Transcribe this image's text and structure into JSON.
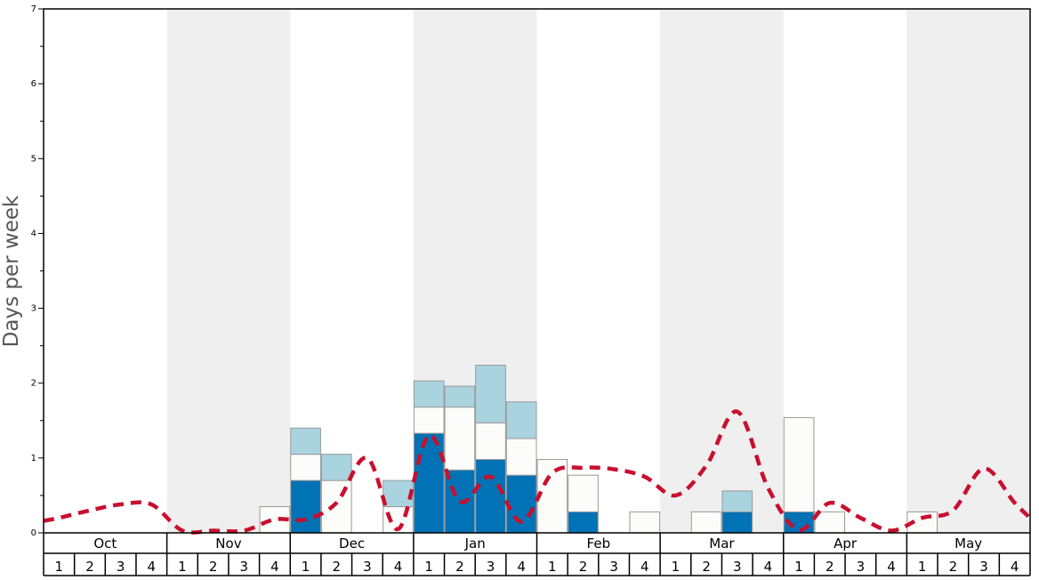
{
  "chart_data": {
    "type": "bar",
    "stacked": true,
    "ylabel": "Days per week",
    "ylim": [
      0,
      7
    ],
    "y_ticks": [
      "0",
      "1",
      "2",
      "3",
      "4",
      "5",
      "6",
      "7"
    ],
    "months": [
      "Oct",
      "Nov",
      "Dec",
      "Jan",
      "Feb",
      "Mar",
      "Apr",
      "May"
    ],
    "weeks": [
      "1",
      "2",
      "3",
      "4"
    ],
    "alternating_month_shading": true,
    "colors": {
      "series_1": "#0072b5",
      "series_2": "#fcfcfa",
      "series_3": "#aad3e0",
      "line": "#c8102e",
      "shade": "#efefef"
    },
    "series": [
      {
        "values": [
          0,
          0,
          0,
          0,
          0,
          0,
          0,
          0,
          0.7,
          0,
          0,
          0,
          1.33,
          0.84,
          0.98,
          0.77,
          0,
          0.28,
          0,
          0,
          0,
          0,
          0.28,
          0,
          0.28,
          0,
          0,
          0,
          0,
          0,
          0,
          0
        ]
      },
      {
        "values": [
          0,
          0,
          0,
          0,
          0,
          0,
          0,
          0.35,
          0.35,
          0.7,
          0,
          0.35,
          0.35,
          0.84,
          0.49,
          0.49,
          0.98,
          0.49,
          0,
          0.28,
          0,
          0.28,
          0,
          0,
          1.26,
          0.28,
          0,
          0,
          0.28,
          0,
          0,
          0
        ]
      },
      {
        "values": [
          0,
          0,
          0,
          0,
          0,
          0,
          0,
          0,
          0.35,
          0.35,
          0,
          0.35,
          0.35,
          0.28,
          0.77,
          0.49,
          0,
          0,
          0,
          0,
          0,
          0,
          0.28,
          0,
          0,
          0,
          0,
          0,
          0,
          0,
          0,
          0
        ]
      }
    ],
    "line_series": {
      "style": "dashed",
      "values": [
        0.2,
        0.3,
        0.38,
        0.38,
        0.03,
        0.03,
        0.03,
        0.18,
        0.18,
        0.4,
        1.0,
        0.05,
        1.3,
        0.42,
        0.75,
        0.15,
        0.8,
        0.87,
        0.85,
        0.75,
        0.5,
        0.9,
        1.62,
        0.6,
        0.04,
        0.4,
        0.2,
        0.03,
        0.2,
        0.3,
        0.86,
        0.4
      ]
    }
  }
}
